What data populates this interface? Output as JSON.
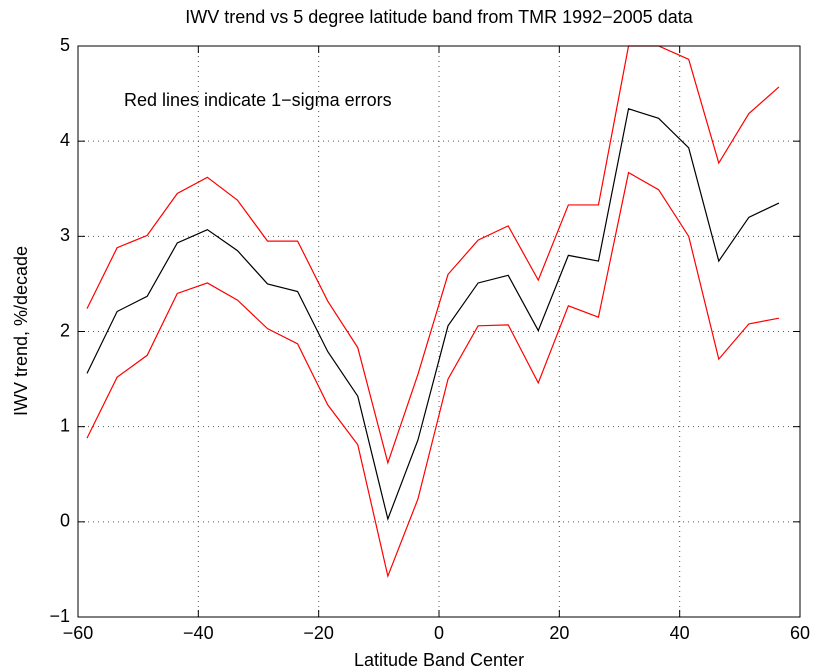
{
  "chart_data": {
    "type": "line",
    "title": "IWV trend vs 5 degree latitude band from TMR 1992−2005 data",
    "x_label": "Latitude Band Center",
    "y_label": "IWV trend, %/decade",
    "annotation": "Red lines indicate 1−sigma errors",
    "x": [
      -58.5,
      -53.5,
      -48.5,
      -43.5,
      -38.5,
      -33.5,
      -28.5,
      -23.5,
      -18.5,
      -13.5,
      -8.5,
      -3.5,
      1.5,
      6.5,
      11.5,
      16.5,
      21.5,
      26.5,
      31.5,
      36.5,
      41.5,
      46.5,
      51.5,
      56.5
    ],
    "series": [
      {
        "color": "#000000",
        "values": [
          1.56,
          2.21,
          2.37,
          2.93,
          3.07,
          2.85,
          2.5,
          2.42,
          1.79,
          1.32,
          0.03,
          0.86,
          2.06,
          2.51,
          2.59,
          2.01,
          2.8,
          2.74,
          4.34,
          4.24,
          3.93,
          2.74,
          3.2,
          3.35
        ]
      },
      {
        "color": "#ff0000",
        "values": [
          2.24,
          2.88,
          3.01,
          3.45,
          3.62,
          3.38,
          2.95,
          2.95,
          2.32,
          1.83,
          0.62,
          1.55,
          2.6,
          2.96,
          3.11,
          2.54,
          3.33,
          3.33,
          5.0,
          5.0,
          4.86,
          3.77,
          4.29,
          4.57
        ]
      },
      {
        "color": "#ff0000",
        "values": [
          0.88,
          1.52,
          1.75,
          2.4,
          2.51,
          2.33,
          2.03,
          1.87,
          1.23,
          0.81,
          -0.57,
          0.24,
          1.5,
          2.06,
          2.07,
          1.46,
          2.27,
          2.15,
          3.67,
          3.49,
          3.0,
          1.71,
          2.08,
          2.14
        ]
      }
    ],
    "xlim": [
      -60,
      60
    ],
    "xticks": [
      {
        "value": -60,
        "label": "−60"
      },
      {
        "value": -40,
        "label": "−40"
      },
      {
        "value": -20,
        "label": "−20"
      },
      0,
      20,
      40,
      60
    ],
    "ylim": [
      -1,
      5
    ],
    "yticks": [
      {
        "value": -1,
        "label": "−1"
      },
      0,
      1,
      2,
      3,
      4,
      5
    ],
    "grid": true
  }
}
